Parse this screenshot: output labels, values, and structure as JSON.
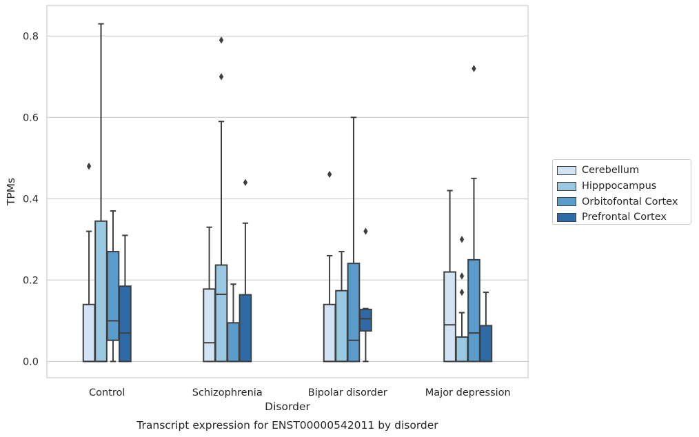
{
  "chart_data": {
    "type": "box",
    "title": "Transcript expression for ENST00000542011 by disorder",
    "xlabel": "Disorder",
    "ylabel": "TPMs",
    "ylim": [
      -0.04,
      0.875
    ],
    "yticks": [
      0.0,
      0.2,
      0.4,
      0.6,
      0.8
    ],
    "ytick_labels": [
      "0.0",
      "0.2",
      "0.4",
      "0.6",
      "0.8"
    ],
    "grid": "horizontal",
    "legend_position": "right",
    "categories": [
      "Control",
      "Schizophrenia",
      "Bipolar disorder",
      "Major depression"
    ],
    "series": [
      {
        "name": "Cerebellum",
        "color": "#d2e3f3",
        "boxes": [
          {
            "min": 0.0,
            "q1": 0.0,
            "median": 0.0,
            "q3": 0.14,
            "max": 0.32,
            "outliers": [
              0.48
            ]
          },
          {
            "min": 0.0,
            "q1": 0.0,
            "median": 0.046,
            "q3": 0.178,
            "max": 0.33,
            "outliers": []
          },
          {
            "min": 0.0,
            "q1": 0.0,
            "median": 0.0,
            "q3": 0.14,
            "max": 0.26,
            "outliers": [
              0.46
            ]
          },
          {
            "min": 0.0,
            "q1": 0.0,
            "median": 0.09,
            "q3": 0.22,
            "max": 0.42,
            "outliers": []
          }
        ]
      },
      {
        "name": "Hipppocampus",
        "color": "#9ac8e0",
        "boxes": [
          {
            "min": 0.0,
            "q1": 0.0,
            "median": 0.0,
            "q3": 0.345,
            "max": 0.83,
            "outliers": []
          },
          {
            "min": 0.0,
            "q1": 0.0,
            "median": 0.165,
            "q3": 0.237,
            "max": 0.59,
            "outliers": [
              0.7,
              0.79
            ]
          },
          {
            "min": 0.0,
            "q1": 0.0,
            "median": 0.0,
            "q3": 0.174,
            "max": 0.27,
            "outliers": []
          },
          {
            "min": 0.0,
            "q1": 0.0,
            "median": 0.06,
            "q3": 0.06,
            "max": 0.12,
            "outliers": [
              0.17,
              0.21,
              0.3
            ]
          }
        ]
      },
      {
        "name": "Orbitofontal Cortex",
        "color": "#5a9dcc",
        "boxes": [
          {
            "min": 0.0,
            "q1": 0.052,
            "median": 0.1,
            "q3": 0.27,
            "max": 0.37,
            "outliers": []
          },
          {
            "min": 0.0,
            "q1": 0.0,
            "median": 0.0,
            "q3": 0.095,
            "max": 0.19,
            "outliers": []
          },
          {
            "min": 0.0,
            "q1": 0.0,
            "median": 0.052,
            "q3": 0.241,
            "max": 0.6,
            "outliers": []
          },
          {
            "min": 0.0,
            "q1": 0.0,
            "median": 0.07,
            "q3": 0.25,
            "max": 0.45,
            "outliers": [
              0.72
            ]
          }
        ]
      },
      {
        "name": "Prefrontal Cortex",
        "color": "#2d6aa6",
        "boxes": [
          {
            "min": 0.0,
            "q1": 0.0,
            "median": 0.07,
            "q3": 0.185,
            "max": 0.31,
            "outliers": []
          },
          {
            "min": 0.0,
            "q1": 0.0,
            "median": 0.0,
            "q3": 0.164,
            "max": 0.34,
            "outliers": [
              0.44
            ]
          },
          {
            "min": 0.0,
            "q1": 0.075,
            "median": 0.105,
            "q3": 0.128,
            "max": 0.13,
            "outliers": [
              0.32
            ]
          },
          {
            "min": 0.0,
            "q1": 0.0,
            "median": 0.0,
            "q3": 0.088,
            "max": 0.17,
            "outliers": []
          }
        ]
      }
    ]
  }
}
